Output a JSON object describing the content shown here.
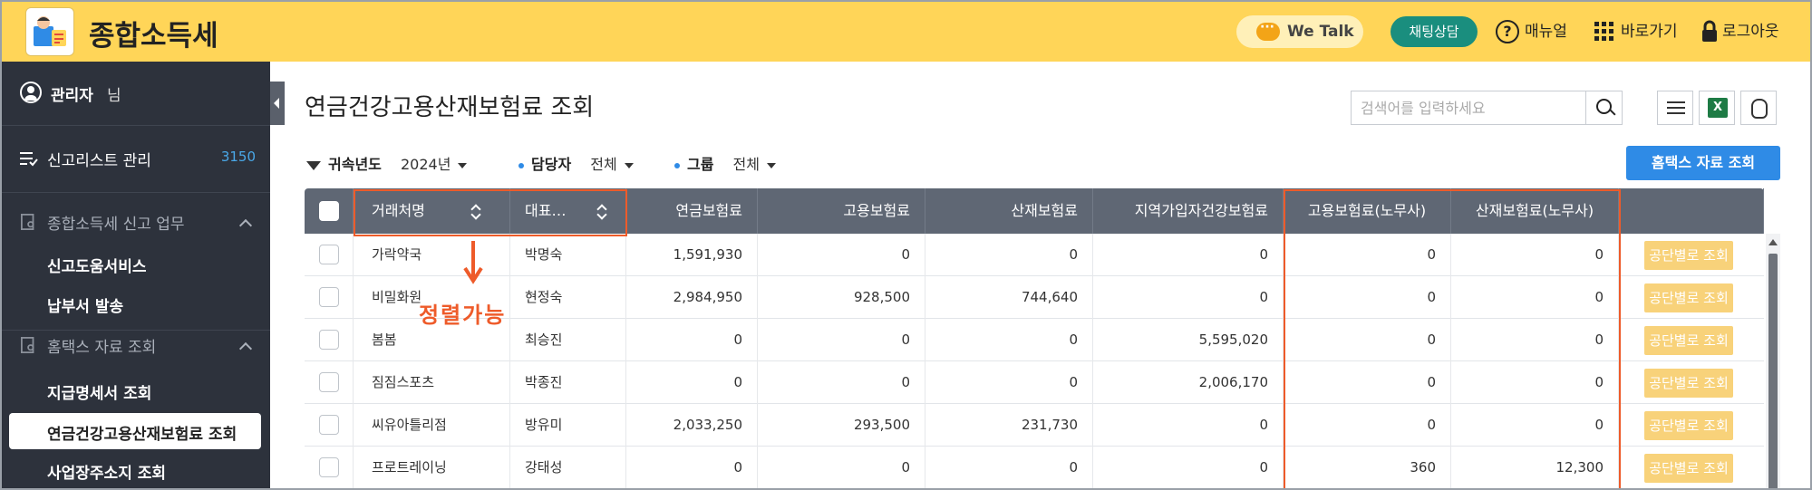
{
  "header": {
    "app_title": "종합소득세",
    "wetalk_label": "We Talk",
    "chat_button": "채팅상담",
    "manual_label": "매뉴얼",
    "shortcut_label": "바로가기",
    "logout_label": "로그아웃",
    "accent_color": "#ffd558"
  },
  "sidebar": {
    "admin_name": "관리자",
    "admin_suffix": "님",
    "report_list_label": "신고리스트 관리",
    "report_list_count": "3150",
    "group1_label": "종합소득세 신고 업무",
    "group1_items": [
      "신고도움서비스",
      "납부서 발송"
    ],
    "group2_label": "홈택스 자료 조회",
    "group2_items": [
      "지급명세서 조회",
      "연금건강고용산재보험료 조회",
      "사업장주소지 조회"
    ]
  },
  "main": {
    "page_title": "연금건강고용산재보험료 조회",
    "search_placeholder": "검색어를 입력하세요",
    "filters": {
      "year_key": "귀속년도",
      "year_value": "2024년",
      "manager_key": "담당자",
      "manager_value": "전체",
      "group_key": "그룹",
      "group_value": "전체"
    },
    "hometax_button": "홈택스 자료 조회",
    "excel_label": "X"
  },
  "table": {
    "columns": [
      "거래처명",
      "대표…",
      "연금보험료",
      "고용보험료",
      "산재보험료",
      "지역가입자건강보험료",
      "고용보험료(노무사)",
      "산재보험료(노무사)"
    ],
    "action_label": "공단별로 조회",
    "rows": [
      [
        "가락약국",
        "박명숙",
        "1,591,930",
        "0",
        "0",
        "0",
        "0",
        "0"
      ],
      [
        "비밀화원",
        "현정숙",
        "2,984,950",
        "928,500",
        "744,640",
        "0",
        "0",
        "0"
      ],
      [
        "봄봄",
        "최승진",
        "0",
        "0",
        "0",
        "5,595,020",
        "0",
        "0"
      ],
      [
        "짐짐스포츠",
        "박종진",
        "0",
        "0",
        "0",
        "2,006,170",
        "0",
        "0"
      ],
      [
        "씨유아틀리점",
        "방유미",
        "2,033,250",
        "293,500",
        "231,730",
        "0",
        "0",
        "0"
      ],
      [
        "프로트레이닝",
        "강태성",
        "0",
        "0",
        "0",
        "0",
        "360",
        "12,300"
      ]
    ]
  },
  "annotation": {
    "text": "정렬가능",
    "color": "#ee5b2a"
  }
}
